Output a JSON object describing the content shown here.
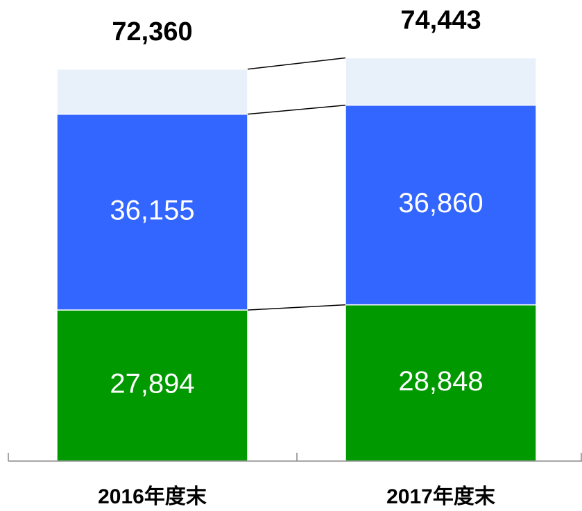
{
  "chart_data": {
    "type": "stacked_bar",
    "categories": [
      "2016年度末",
      "2017年度末"
    ],
    "series": [
      {
        "color": "#009900",
        "values": [
          27894,
          28848
        ],
        "value_labels": [
          "27,894",
          "28,848"
        ]
      },
      {
        "color": "#3366ff",
        "values": [
          36155,
          36860
        ],
        "value_labels": [
          "36,155",
          "36,860"
        ]
      },
      {
        "color": "#e8f0fa",
        "values": [
          8311,
          8735
        ]
      }
    ],
    "totals": [
      72360,
      74443
    ],
    "total_labels": [
      "72,360",
      "74,443"
    ],
    "ylim": [
      0,
      85000
    ]
  }
}
